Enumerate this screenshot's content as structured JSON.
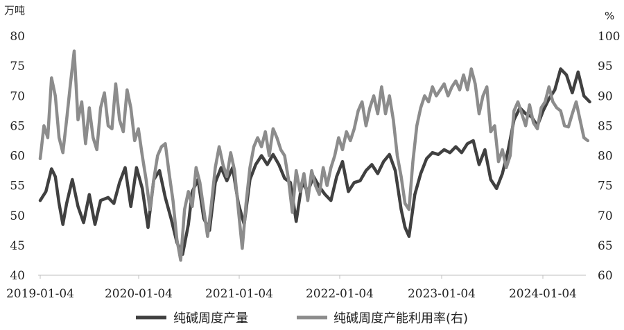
{
  "chart_data": {
    "type": "line",
    "left_unit": "万吨",
    "right_unit": "%",
    "y_left_ticks": [
      "80",
      "75",
      "70",
      "65",
      "60",
      "55",
      "50",
      "45",
      "40"
    ],
    "y_right_ticks": [
      "100",
      "95",
      "90",
      "85",
      "80",
      "75",
      "70",
      "65",
      "60"
    ],
    "x_ticks": [
      "2019-01-04",
      "2020-01-04",
      "2021-01-04",
      "2022-01-04",
      "2023-01-04",
      "2024-01-04"
    ],
    "ylim_left": [
      40,
      80
    ],
    "ylim_right": [
      60,
      100
    ],
    "xlim": [
      "2019-01-04",
      "2024-09-01"
    ],
    "grid": false,
    "legend_position": "bottom",
    "series": [
      {
        "name": "纯碱周度产量",
        "axis": "left",
        "color": "#404040",
        "points": [
          [
            "2019-01-04",
            52.5
          ],
          [
            "2019-01-25",
            54
          ],
          [
            "2019-02-15",
            57.8
          ],
          [
            "2019-03-01",
            56.5
          ],
          [
            "2019-03-15",
            52
          ],
          [
            "2019-03-29",
            48.5
          ],
          [
            "2019-04-12",
            52
          ],
          [
            "2019-05-03",
            56
          ],
          [
            "2019-05-24",
            51.5
          ],
          [
            "2019-06-14",
            48.8
          ],
          [
            "2019-07-05",
            53.5
          ],
          [
            "2019-07-26",
            48.5
          ],
          [
            "2019-08-16",
            52.5
          ],
          [
            "2019-09-13",
            53
          ],
          [
            "2019-10-04",
            52
          ],
          [
            "2019-10-25",
            55.5
          ],
          [
            "2019-11-15",
            58
          ],
          [
            "2019-12-06",
            51.5
          ],
          [
            "2019-12-27",
            58
          ],
          [
            "2020-01-17",
            54.5
          ],
          [
            "2020-02-07",
            48
          ],
          [
            "2020-02-28",
            56
          ],
          [
            "2020-03-20",
            57.5
          ],
          [
            "2020-04-10",
            53
          ],
          [
            "2020-05-01",
            49.5
          ],
          [
            "2020-05-22",
            45.5
          ],
          [
            "2020-06-12",
            43.5
          ],
          [
            "2020-07-03",
            48.5
          ],
          [
            "2020-07-17",
            54
          ],
          [
            "2020-08-07",
            56
          ],
          [
            "2020-08-28",
            49.5
          ],
          [
            "2020-09-18",
            47.5
          ],
          [
            "2020-10-09",
            55.5
          ],
          [
            "2020-10-30",
            58
          ],
          [
            "2020-11-20",
            55.8
          ],
          [
            "2020-12-11",
            58
          ],
          [
            "2021-01-01",
            52
          ],
          [
            "2021-01-22",
            48.5
          ],
          [
            "2021-02-12",
            56
          ],
          [
            "2021-03-05",
            58.5
          ],
          [
            "2021-03-26",
            60
          ],
          [
            "2021-04-16",
            58.5
          ],
          [
            "2021-05-07",
            60.2
          ],
          [
            "2021-05-28",
            58.5
          ],
          [
            "2021-06-18",
            56.2
          ],
          [
            "2021-07-09",
            55.5
          ],
          [
            "2021-07-30",
            49
          ],
          [
            "2021-08-20",
            55.5
          ],
          [
            "2021-09-10",
            54
          ],
          [
            "2021-10-01",
            56.5
          ],
          [
            "2021-10-22",
            54.8
          ],
          [
            "2021-11-12",
            53.5
          ],
          [
            "2021-12-03",
            52.5
          ],
          [
            "2021-12-24",
            56.5
          ],
          [
            "2022-01-14",
            59
          ],
          [
            "2022-02-04",
            54
          ],
          [
            "2022-02-25",
            55.5
          ],
          [
            "2022-03-18",
            55.8
          ],
          [
            "2022-04-08",
            57.5
          ],
          [
            "2022-04-29",
            58.5
          ],
          [
            "2022-05-20",
            57
          ],
          [
            "2022-06-10",
            59
          ],
          [
            "2022-07-01",
            60.2
          ],
          [
            "2022-07-22",
            57.5
          ],
          [
            "2022-08-12",
            51
          ],
          [
            "2022-08-26",
            48
          ],
          [
            "2022-09-09",
            46.5
          ],
          [
            "2022-09-30",
            53.5
          ],
          [
            "2022-10-21",
            57
          ],
          [
            "2022-11-11",
            59.5
          ],
          [
            "2022-12-02",
            60.5
          ],
          [
            "2022-12-23",
            60.2
          ],
          [
            "2023-01-13",
            61
          ],
          [
            "2023-02-03",
            60.5
          ],
          [
            "2023-02-24",
            61.5
          ],
          [
            "2023-03-17",
            60.5
          ],
          [
            "2023-04-07",
            62
          ],
          [
            "2023-04-28",
            62.5
          ],
          [
            "2023-05-19",
            58.5
          ],
          [
            "2023-06-09",
            61
          ],
          [
            "2023-06-30",
            56
          ],
          [
            "2023-07-21",
            54.5
          ],
          [
            "2023-08-11",
            57
          ],
          [
            "2023-09-01",
            61
          ],
          [
            "2023-09-22",
            66
          ],
          [
            "2023-10-13",
            68
          ],
          [
            "2023-11-03",
            67
          ],
          [
            "2023-11-24",
            66.5
          ],
          [
            "2023-12-15",
            65
          ],
          [
            "2024-01-05",
            67.5
          ],
          [
            "2024-01-26",
            69.5
          ],
          [
            "2024-02-16",
            71
          ],
          [
            "2024-03-08",
            74.5
          ],
          [
            "2024-03-29",
            73.5
          ],
          [
            "2024-04-19",
            70.5
          ],
          [
            "2024-05-10",
            74
          ],
          [
            "2024-05-31",
            70
          ],
          [
            "2024-06-21",
            69
          ]
        ]
      },
      {
        "name": "纯碱周度产能利用率(右)",
        "axis": "right",
        "color": "#8c8c8c",
        "points": [
          [
            "2019-01-04",
            79.5
          ],
          [
            "2019-01-18",
            85
          ],
          [
            "2019-02-01",
            83
          ],
          [
            "2019-02-15",
            93
          ],
          [
            "2019-03-01",
            90
          ],
          [
            "2019-03-15",
            83
          ],
          [
            "2019-03-29",
            80.5
          ],
          [
            "2019-04-12",
            86
          ],
          [
            "2019-04-26",
            92
          ],
          [
            "2019-05-10",
            97.5
          ],
          [
            "2019-05-24",
            86
          ],
          [
            "2019-06-07",
            89
          ],
          [
            "2019-06-21",
            82
          ],
          [
            "2019-07-05",
            88
          ],
          [
            "2019-07-19",
            83
          ],
          [
            "2019-08-02",
            81
          ],
          [
            "2019-08-16",
            88
          ],
          [
            "2019-08-30",
            90.5
          ],
          [
            "2019-09-13",
            85
          ],
          [
            "2019-09-27",
            84.5
          ],
          [
            "2019-10-11",
            92
          ],
          [
            "2019-10-25",
            86
          ],
          [
            "2019-11-08",
            84
          ],
          [
            "2019-11-22",
            91
          ],
          [
            "2019-12-06",
            88
          ],
          [
            "2019-12-20",
            82.5
          ],
          [
            "2020-01-03",
            84.5
          ],
          [
            "2020-01-17",
            80
          ],
          [
            "2020-01-31",
            76
          ],
          [
            "2020-02-14",
            71
          ],
          [
            "2020-02-28",
            76
          ],
          [
            "2020-03-13",
            80
          ],
          [
            "2020-03-27",
            81.5
          ],
          [
            "2020-04-10",
            82
          ],
          [
            "2020-04-24",
            77
          ],
          [
            "2020-05-08",
            72.5
          ],
          [
            "2020-05-22",
            66
          ],
          [
            "2020-06-05",
            62.5
          ],
          [
            "2020-06-19",
            71
          ],
          [
            "2020-07-03",
            74
          ],
          [
            "2020-07-17",
            71.5
          ],
          [
            "2020-07-31",
            78
          ],
          [
            "2020-08-14",
            75.5
          ],
          [
            "2020-08-28",
            71
          ],
          [
            "2020-09-11",
            66.5
          ],
          [
            "2020-09-25",
            72
          ],
          [
            "2020-10-09",
            78
          ],
          [
            "2020-10-23",
            81.5
          ],
          [
            "2020-11-06",
            78.5
          ],
          [
            "2020-11-20",
            76.5
          ],
          [
            "2020-12-04",
            80.5
          ],
          [
            "2020-12-18",
            77.5
          ],
          [
            "2021-01-01",
            71
          ],
          [
            "2021-01-15",
            64.5
          ],
          [
            "2021-01-29",
            72
          ],
          [
            "2021-02-12",
            78
          ],
          [
            "2021-02-26",
            81.5
          ],
          [
            "2021-03-12",
            83
          ],
          [
            "2021-03-26",
            81.5
          ],
          [
            "2021-04-09",
            84
          ],
          [
            "2021-04-23",
            80
          ],
          [
            "2021-05-07",
            84.5
          ],
          [
            "2021-05-21",
            83
          ],
          [
            "2021-06-04",
            81
          ],
          [
            "2021-06-18",
            80
          ],
          [
            "2021-07-02",
            76
          ],
          [
            "2021-07-16",
            70.5
          ],
          [
            "2021-07-30",
            77.5
          ],
          [
            "2021-08-13",
            74
          ],
          [
            "2021-08-27",
            77
          ],
          [
            "2021-09-10",
            72.5
          ],
          [
            "2021-09-24",
            77.5
          ],
          [
            "2021-10-08",
            75
          ],
          [
            "2021-10-22",
            73.5
          ],
          [
            "2021-11-05",
            78
          ],
          [
            "2021-11-19",
            75
          ],
          [
            "2021-12-03",
            78
          ],
          [
            "2021-12-17",
            80
          ],
          [
            "2021-12-31",
            83
          ],
          [
            "2022-01-14",
            81
          ],
          [
            "2022-01-28",
            84
          ],
          [
            "2022-02-11",
            82.5
          ],
          [
            "2022-02-25",
            84.5
          ],
          [
            "2022-03-11",
            87.5
          ],
          [
            "2022-03-25",
            89
          ],
          [
            "2022-04-08",
            85
          ],
          [
            "2022-04-22",
            88
          ],
          [
            "2022-05-06",
            90
          ],
          [
            "2022-05-20",
            87
          ],
          [
            "2022-06-03",
            91.5
          ],
          [
            "2022-06-17",
            87
          ],
          [
            "2022-07-01",
            90
          ],
          [
            "2022-07-15",
            86
          ],
          [
            "2022-07-29",
            80
          ],
          [
            "2022-08-12",
            76.5
          ],
          [
            "2022-08-26",
            72
          ],
          [
            "2022-09-09",
            71
          ],
          [
            "2022-09-23",
            79
          ],
          [
            "2022-10-07",
            85
          ],
          [
            "2022-10-21",
            88
          ],
          [
            "2022-11-04",
            90
          ],
          [
            "2022-11-18",
            89
          ],
          [
            "2022-12-02",
            91.5
          ],
          [
            "2022-12-16",
            90
          ],
          [
            "2022-12-30",
            91
          ],
          [
            "2023-01-13",
            92
          ],
          [
            "2023-01-27",
            90
          ],
          [
            "2023-02-10",
            91.5
          ],
          [
            "2023-02-24",
            92.5
          ],
          [
            "2023-03-10",
            91
          ],
          [
            "2023-03-24",
            93.5
          ],
          [
            "2023-04-07",
            91
          ],
          [
            "2023-04-21",
            94.5
          ],
          [
            "2023-05-05",
            92
          ],
          [
            "2023-05-19",
            87
          ],
          [
            "2023-06-02",
            90
          ],
          [
            "2023-06-16",
            91.5
          ],
          [
            "2023-06-30",
            84
          ],
          [
            "2023-07-14",
            85
          ],
          [
            "2023-07-28",
            79
          ],
          [
            "2023-08-11",
            81
          ],
          [
            "2023-08-25",
            78
          ],
          [
            "2023-09-08",
            80
          ],
          [
            "2023-09-22",
            87.5
          ],
          [
            "2023-10-06",
            89
          ],
          [
            "2023-10-20",
            87
          ],
          [
            "2023-11-03",
            85
          ],
          [
            "2023-11-17",
            88.5
          ],
          [
            "2023-12-01",
            85.5
          ],
          [
            "2023-12-15",
            84.5
          ],
          [
            "2023-12-29",
            88
          ],
          [
            "2024-01-12",
            89
          ],
          [
            "2024-01-26",
            91.5
          ],
          [
            "2024-02-09",
            89
          ],
          [
            "2024-02-23",
            88
          ],
          [
            "2024-03-08",
            87.5
          ],
          [
            "2024-03-22",
            85
          ],
          [
            "2024-04-05",
            84.8
          ],
          [
            "2024-04-19",
            87
          ],
          [
            "2024-05-03",
            89
          ],
          [
            "2024-05-17",
            86
          ],
          [
            "2024-05-31",
            83
          ],
          [
            "2024-06-14",
            82.5
          ]
        ]
      }
    ]
  }
}
